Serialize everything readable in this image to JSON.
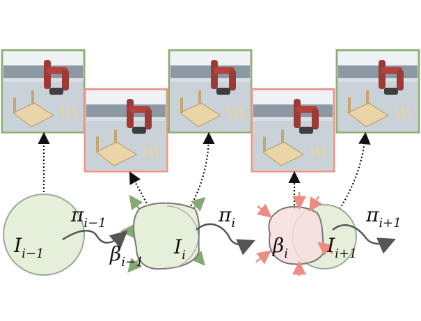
{
  "colors": {
    "green_border": "#8fae79",
    "red_border": "#e8968a",
    "set_fill_green": "#e6efd9",
    "set_stroke_green": "#9aa89a",
    "set_fill_red": "#f7dede",
    "arrow_green": "#86a872",
    "arrow_red": "#ec8c82",
    "arrow_gray": "#555555"
  },
  "panels": [
    {
      "id": "panel-1",
      "tone": "green",
      "description": "robot arm scene"
    },
    {
      "id": "panel-2",
      "tone": "red",
      "description": "robot arm scene"
    },
    {
      "id": "panel-3",
      "tone": "green",
      "description": "robot arm scene"
    },
    {
      "id": "panel-4",
      "tone": "red",
      "description": "robot arm scene"
    },
    {
      "id": "panel-5",
      "tone": "green",
      "description": "robot arm scene"
    }
  ],
  "labels": {
    "I_prev": {
      "base": "I",
      "sub": "i−1"
    },
    "pi_prev": {
      "base": "π",
      "sub": "i−1"
    },
    "beta_prev": {
      "base": "β",
      "sub": "i−1"
    },
    "I_cur": {
      "base": "I",
      "sub": "i"
    },
    "pi_cur": {
      "base": "π",
      "sub": "i"
    },
    "beta_cur": {
      "base": "β",
      "sub": "i"
    },
    "I_next": {
      "base": "I",
      "sub": "i+1"
    },
    "pi_next": {
      "base": "π",
      "sub": "i+1"
    }
  }
}
